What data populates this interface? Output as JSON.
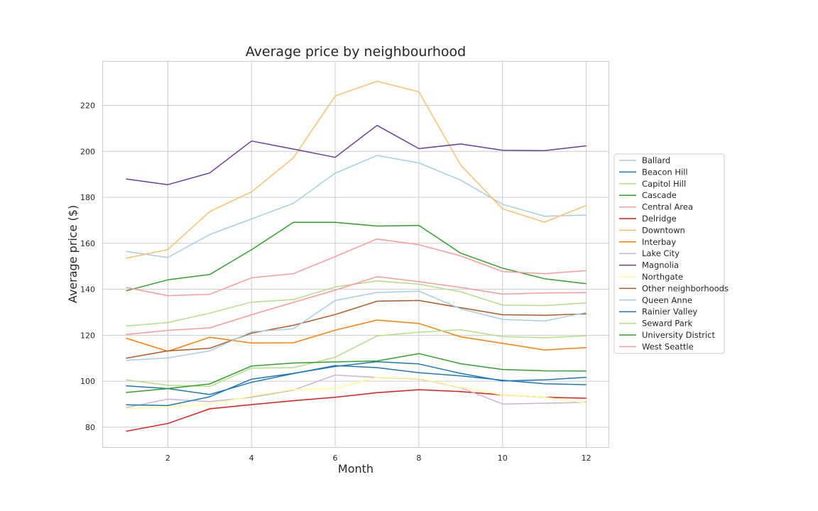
{
  "chart_data": {
    "type": "line",
    "title": "Average price by neighbourhood",
    "xlabel": "Month",
    "ylabel": "Average price ($)",
    "xlim": [
      0.45,
      12.55
    ],
    "ylim": [
      71,
      239
    ],
    "x_ticks": [
      2,
      4,
      6,
      8,
      10,
      12
    ],
    "y_ticks": [
      80,
      100,
      120,
      140,
      160,
      180,
      200,
      220
    ],
    "grid": true,
    "legend_position": "right",
    "x": [
      1,
      2,
      3,
      4,
      5,
      6,
      7,
      8,
      9,
      10,
      11,
      12
    ],
    "series": [
      {
        "name": "Ballard",
        "color": "#a6cee3",
        "values": [
          156.5,
          153.8,
          163.8,
          170.6,
          177.4,
          190.5,
          198.2,
          195.0,
          187.5,
          177.0,
          171.8,
          172.3
        ]
      },
      {
        "name": "Beacon Hill",
        "color": "#1f78b4",
        "values": [
          98.0,
          96.8,
          94.2,
          99.5,
          103.3,
          106.8,
          105.9,
          103.7,
          102.3,
          100.4,
          98.9,
          98.5
        ]
      },
      {
        "name": "Capitol Hill",
        "color": "#b2df8a",
        "values": [
          124.0,
          125.5,
          129.6,
          134.4,
          135.5,
          141.0,
          143.6,
          142.2,
          138.9,
          133.1,
          132.9,
          134.1
        ]
      },
      {
        "name": "Cascade",
        "color": "#33a02c",
        "values": [
          139.3,
          144.1,
          146.4,
          157.2,
          169.1,
          169.1,
          167.5,
          167.8,
          155.7,
          149.2,
          144.6,
          142.4
        ]
      },
      {
        "name": "Central Area",
        "color": "#fb9a99",
        "values": [
          140.8,
          137.2,
          137.8,
          145.0,
          146.8,
          154.2,
          161.9,
          159.4,
          154.5,
          147.7,
          146.8,
          148.1
        ]
      },
      {
        "name": "Delridge",
        "color": "#e31a1c",
        "values": [
          78.2,
          81.6,
          88.0,
          89.8,
          91.5,
          93.0,
          95.0,
          96.3,
          95.5,
          94.0,
          93.0,
          92.6
        ]
      },
      {
        "name": "Downtown",
        "color": "#fdbf6f",
        "values": [
          153.5,
          157.3,
          173.8,
          182.4,
          197.2,
          224.1,
          230.5,
          225.9,
          194.0,
          175.0,
          169.2,
          176.5
        ]
      },
      {
        "name": "Interbay",
        "color": "#ff7f00",
        "values": [
          118.7,
          113.0,
          119.1,
          116.6,
          116.7,
          122.2,
          126.6,
          125.1,
          119.3,
          116.5,
          113.6,
          114.6
        ]
      },
      {
        "name": "Lake City",
        "color": "#cab2d6",
        "values": [
          88.5,
          92.2,
          91.1,
          93.0,
          96.1,
          102.7,
          101.6,
          101.0,
          97.2,
          90.1,
          90.4,
          90.8
        ]
      },
      {
        "name": "Magnolia",
        "color": "#6a3d9a",
        "values": [
          188.0,
          185.5,
          190.6,
          204.5,
          201.0,
          197.4,
          211.3,
          201.2,
          203.2,
          200.5,
          200.3,
          202.4
        ]
      },
      {
        "name": "Northgate",
        "color": "#ffff99",
        "values": [
          88.0,
          88.9,
          90.0,
          93.5,
          96.4,
          96.8,
          101.7,
          101.2,
          97.3,
          94.0,
          93.0,
          90.5
        ]
      },
      {
        "name": "Other neighborhoods",
        "color": "#b15928",
        "values": [
          110.0,
          113.2,
          114.3,
          120.9,
          124.3,
          129.0,
          134.8,
          135.1,
          132.0,
          128.9,
          128.7,
          129.3
        ]
      },
      {
        "name": "Queen Anne",
        "color": "#a6cee3",
        "values": [
          109.1,
          110.1,
          113.2,
          121.5,
          122.8,
          135.1,
          138.6,
          139.2,
          131.5,
          126.9,
          126.2,
          129.9
        ]
      },
      {
        "name": "Rainier Valley",
        "color": "#1f78b4",
        "values": [
          89.7,
          89.4,
          93.2,
          100.9,
          103.4,
          106.4,
          108.5,
          107.5,
          103.4,
          100.1,
          100.6,
          101.7
        ]
      },
      {
        "name": "Seward Park",
        "color": "#b2df8a",
        "values": [
          100.6,
          98.2,
          97.7,
          105.7,
          105.9,
          110.4,
          119.7,
          121.3,
          122.4,
          119.4,
          118.9,
          119.7
        ]
      },
      {
        "name": "University District",
        "color": "#33a02c",
        "values": [
          95.1,
          96.8,
          98.8,
          106.6,
          107.9,
          108.4,
          108.8,
          112.0,
          107.6,
          105.1,
          104.5,
          104.4
        ]
      },
      {
        "name": "West Seattle",
        "color": "#fb9a99",
        "values": [
          120.3,
          122.1,
          123.2,
          128.9,
          134.3,
          139.6,
          145.5,
          143.3,
          140.8,
          137.9,
          138.4,
          138.5
        ]
      }
    ]
  }
}
